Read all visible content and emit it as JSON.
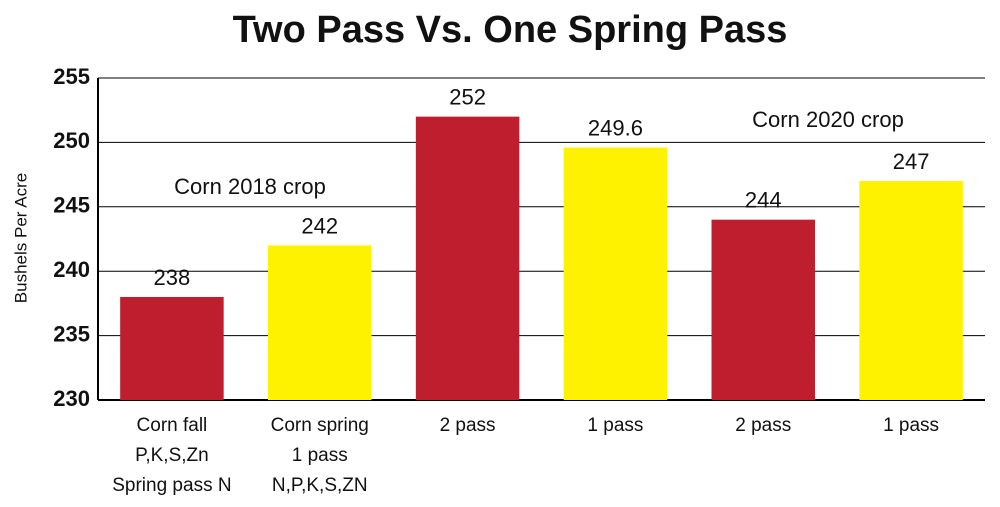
{
  "chart_data": {
    "type": "bar",
    "title": "Two Pass Vs. One Spring Pass",
    "y_label": "Bushels Per Acre",
    "categories": [
      [
        "Corn fall",
        "P,K,S,Zn",
        "Spring pass N"
      ],
      [
        "Corn spring",
        "1 pass",
        "N,P,K,S,ZN"
      ],
      [
        "2 pass"
      ],
      [
        "1 pass"
      ],
      [
        "2 pass"
      ],
      [
        "1 pass"
      ]
    ],
    "values": [
      238,
      242,
      252,
      249.6,
      244,
      247
    ],
    "colors": [
      "#be1e2d",
      "#fff200",
      "#be1e2d",
      "#fff200",
      "#be1e2d",
      "#fff200"
    ],
    "annotations": [
      "Corn 2018 crop",
      "Corn 2020 crop"
    ],
    "ylim": [
      230,
      255
    ],
    "yticks": [
      230,
      235,
      240,
      245,
      250,
      255
    ],
    "grid": true
  }
}
